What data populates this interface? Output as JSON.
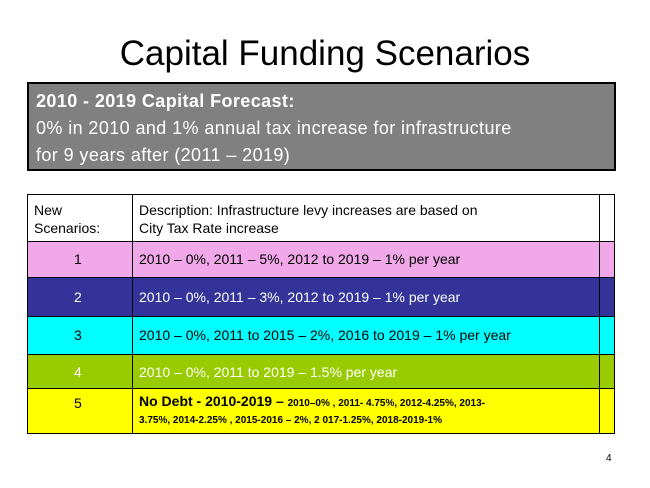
{
  "title": "Capital Funding Scenarios",
  "banner": {
    "line1": "2010 - 2019 Capital Forecast:",
    "line2": "0% in 2010 and 1% annual tax increase for infrastructure",
    "line3": "for 9 years after (2011 – 2019)"
  },
  "table": {
    "header": {
      "col1_line1": "New",
      "col1_line2": "Scenarios:",
      "col2_line1": "Description: Infrastructure levy increases are based on",
      "col2_line2": "City Tax Rate increase"
    },
    "rows": [
      {
        "num": "1",
        "desc": "2010 – 0%, 2011 – 5%, 2012 to 2019 – 1% per year",
        "color": "#f0a8e8",
        "text_color": "#000000"
      },
      {
        "num": "2",
        "desc": "2010 – 0%, 2011 – 3%, 2012 to 2019 – 1% per year",
        "color": "#333399",
        "text_color": "#ffffff"
      },
      {
        "num": "3",
        "desc": "2010 – 0%, 2011 to 2015 – 2%, 2016 to 2019 – 1% per year",
        "color": "#00ffff",
        "text_color": "#000000"
      },
      {
        "num": "4",
        "desc": "2010 – 0%, 2011 to 2019 – 1.5% per year",
        "color": "#99cc00",
        "text_color": "#ffffff"
      },
      {
        "num": "5",
        "desc_big": "No Debt - 2010-2019 – ",
        "desc_small1": "2010–0% , 2011- 4.75%, 2012-4.25%, 2013-",
        "desc_small2": "3.75%, 2014-2.25% , 2015-2016 – 2%, 2 017-1.25%, 2018-2019-1%",
        "color": "#ffff00",
        "text_color": "#000000"
      }
    ]
  },
  "page_number": "4"
}
